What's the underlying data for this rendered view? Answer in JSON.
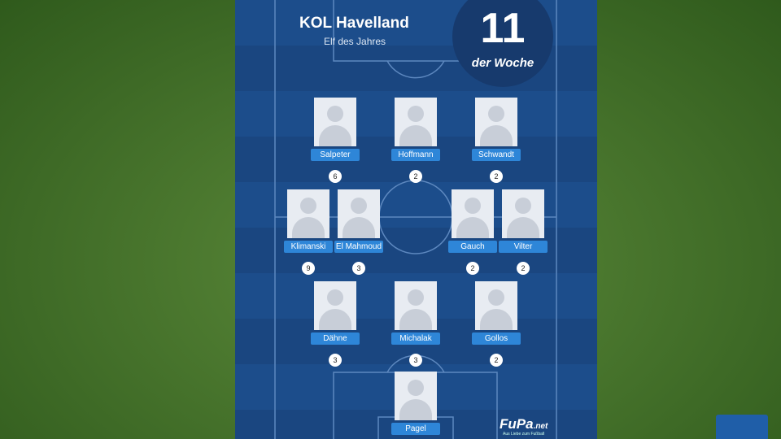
{
  "header": {
    "title": "KOL Havelland",
    "subtitle": "Elf des Jahres",
    "badge_number": "11",
    "badge_text": "der Woche"
  },
  "lineup": {
    "rows": [
      [
        {
          "name": "Salpeter",
          "count": "6"
        },
        {
          "name": "Hoffmann",
          "count": "2"
        },
        {
          "name": "Schwandt",
          "count": "2"
        }
      ],
      [
        {
          "name": "Klimanski",
          "count": "9"
        },
        {
          "name": "El Mahmoud",
          "count": "3"
        },
        {
          "name": "Gauch",
          "count": "2"
        },
        {
          "name": "Vilter",
          "count": "2"
        }
      ],
      [
        {
          "name": "Dähne",
          "count": "3"
        },
        {
          "name": "Michalak",
          "count": "3"
        },
        {
          "name": "Gollos",
          "count": "2"
        }
      ],
      [
        {
          "name": "Pagel"
        }
      ]
    ]
  },
  "footer": {
    "logo": "FuPa",
    "logo_suffix": ".net",
    "tagline": "Aus Liebe zum Fußball"
  }
}
